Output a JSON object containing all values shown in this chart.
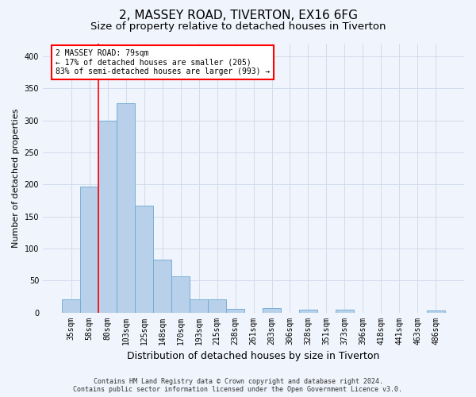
{
  "title": "2, MASSEY ROAD, TIVERTON, EX16 6FG",
  "subtitle": "Size of property relative to detached houses in Tiverton",
  "xlabel": "Distribution of detached houses by size in Tiverton",
  "ylabel": "Number of detached properties",
  "categories": [
    "35sqm",
    "58sqm",
    "80sqm",
    "103sqm",
    "125sqm",
    "148sqm",
    "170sqm",
    "193sqm",
    "215sqm",
    "238sqm",
    "261sqm",
    "283sqm",
    "306sqm",
    "328sqm",
    "351sqm",
    "373sqm",
    "396sqm",
    "418sqm",
    "441sqm",
    "463sqm",
    "486sqm"
  ],
  "values": [
    20,
    197,
    300,
    327,
    167,
    82,
    57,
    21,
    21,
    6,
    0,
    7,
    0,
    5,
    0,
    5,
    0,
    0,
    0,
    0,
    3
  ],
  "bar_color": "#b8d0ea",
  "bar_edge_color": "#6aaad4",
  "property_line_x": 1.5,
  "annotation_text": "2 MASSEY ROAD: 79sqm\n← 17% of detached houses are smaller (205)\n83% of semi-detached houses are larger (993) →",
  "annotation_box_color": "white",
  "annotation_box_edge_color": "red",
  "vline_color": "red",
  "ylim": [
    0,
    420
  ],
  "yticks": [
    0,
    50,
    100,
    150,
    200,
    250,
    300,
    350,
    400
  ],
  "grid_color": "#cdd8ea",
  "background_color": "#f0f4fc",
  "footnote": "Contains HM Land Registry data © Crown copyright and database right 2024.\nContains public sector information licensed under the Open Government Licence v3.0.",
  "title_fontsize": 11,
  "subtitle_fontsize": 9.5,
  "xlabel_fontsize": 9,
  "ylabel_fontsize": 8,
  "tick_fontsize": 7,
  "annot_fontsize": 7,
  "footnote_fontsize": 6
}
